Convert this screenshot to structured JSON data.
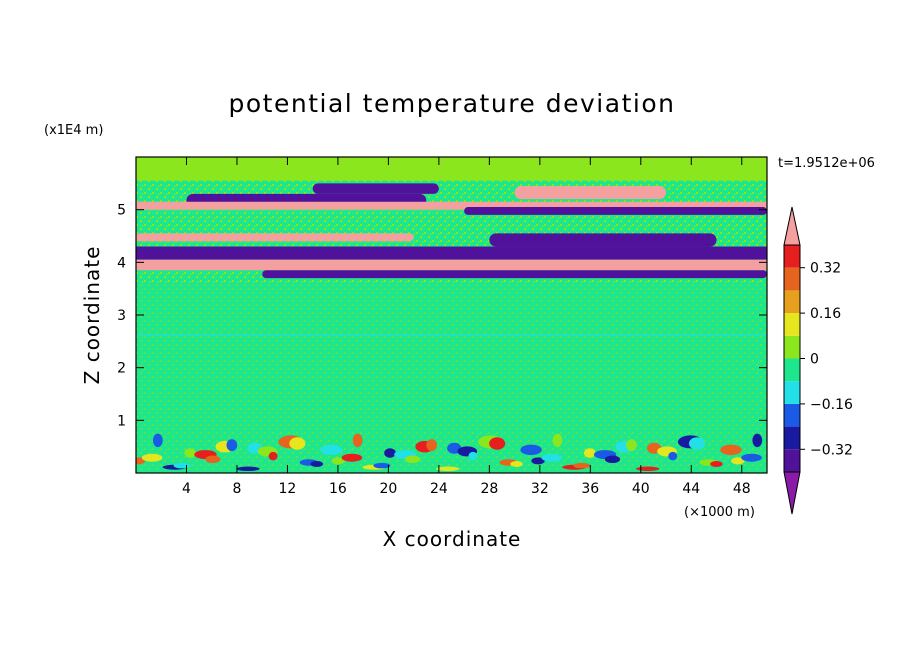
{
  "chart_data": {
    "type": "heatmap",
    "title": "potential temperature deviation",
    "xlabel": "X coordinate",
    "ylabel": "Z coordinate",
    "x_unit": "(×1000 m)",
    "y_unit": "(x1E4 m)",
    "time_label": "t=1.9512e+06",
    "xlim": [
      0,
      50
    ],
    "ylim": [
      0,
      6
    ],
    "x_ticks": [
      "4",
      "8",
      "12",
      "16",
      "20",
      "24",
      "28",
      "32",
      "36",
      "40",
      "44",
      "48"
    ],
    "y_ticks": [
      "1",
      "2",
      "3",
      "4",
      "5"
    ],
    "colorbar": {
      "tick_labels": [
        "0.32",
        "0.16",
        "0",
        "−0.16",
        "−0.32"
      ],
      "tick_values": [
        0.32,
        0.16,
        0,
        -0.16,
        -0.32
      ],
      "levels": [
        -0.4,
        -0.32,
        -0.24,
        -0.16,
        -0.08,
        0,
        0.08,
        0.16,
        0.24,
        0.32,
        0.4
      ],
      "colors": [
        "#8a1aa8",
        "#50129a",
        "#1a1aa0",
        "#1a5ae6",
        "#22e0e6",
        "#1ee68c",
        "#8ce61e",
        "#e6e61e",
        "#e6a01e",
        "#e6641e",
        "#e61e1e",
        "#f5a0a0"
      ]
    },
    "bands": [
      {
        "z": [
          5.55,
          6.0
        ],
        "x": [
          0,
          50
        ],
        "value": 0.02
      },
      {
        "z": [
          5.05,
          5.3
        ],
        "x": [
          4,
          23
        ],
        "value": -0.38
      },
      {
        "z": [
          5.3,
          5.5
        ],
        "x": [
          14,
          24
        ],
        "value": -0.38
      },
      {
        "z": [
          5.2,
          5.45
        ],
        "x": [
          30,
          42
        ],
        "value": 0.42
      },
      {
        "z": [
          5.0,
          5.15
        ],
        "x": [
          0,
          50
        ],
        "value": 0.42
      },
      {
        "z": [
          4.9,
          5.05
        ],
        "x": [
          26,
          50
        ],
        "value": -0.38
      },
      {
        "z": [
          4.4,
          4.55
        ],
        "x": [
          0,
          22
        ],
        "value": 0.42
      },
      {
        "z": [
          4.3,
          4.55
        ],
        "x": [
          28,
          46
        ],
        "value": -0.38
      },
      {
        "z": [
          4.05,
          4.3
        ],
        "x": [
          0,
          50
        ],
        "value": -0.38
      },
      {
        "z": [
          3.85,
          4.05
        ],
        "x": [
          0,
          50
        ],
        "value": 0.42
      },
      {
        "z": [
          3.7,
          3.85
        ],
        "x": [
          10,
          50
        ],
        "value": -0.38
      },
      {
        "z": [
          0.7,
          3.6
        ],
        "x": [
          0,
          50
        ],
        "value": 0.0
      },
      {
        "z": [
          0.0,
          0.7
        ],
        "x": [
          0,
          50
        ],
        "value": 0.0
      }
    ]
  }
}
